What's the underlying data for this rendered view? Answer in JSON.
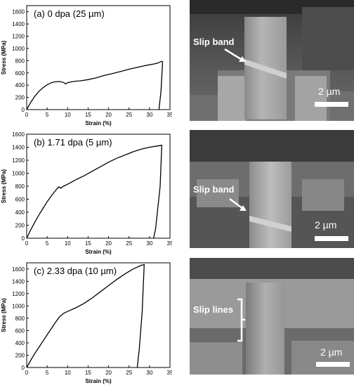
{
  "chart_data": [
    {
      "type": "line",
      "title": "(a) 0 dpa (25 µm)",
      "xlabel": "Strain (%)",
      "ylabel": "Stress (MPa)",
      "xlim": [
        0,
        35
      ],
      "ylim": [
        0,
        1700
      ],
      "x_ticks": [
        "0",
        "5",
        "10",
        "15",
        "20",
        "25",
        "30",
        "35"
      ],
      "y_ticks": [
        "0",
        "200",
        "400",
        "600",
        "800",
        "1000",
        "1200",
        "1400",
        "1600"
      ],
      "series": [
        {
          "x": [
            0,
            1,
            2,
            3,
            4,
            5,
            6,
            7,
            8,
            9,
            9.5,
            10,
            11,
            12,
            13,
            15,
            17,
            19,
            21,
            23,
            25,
            27,
            29,
            31,
            32,
            33,
            33.2,
            32.8,
            32.3
          ],
          "y": [
            0,
            120,
            220,
            300,
            360,
            405,
            440,
            455,
            460,
            445,
            420,
            440,
            455,
            465,
            470,
            490,
            520,
            560,
            590,
            625,
            660,
            690,
            720,
            745,
            760,
            790,
            780,
            300,
            0
          ]
        }
      ]
    },
    {
      "type": "line",
      "title": "(b) 1.71 dpa (5 µm)",
      "xlabel": "Strain (%)",
      "ylabel": "Stress (MPa)",
      "xlim": [
        0,
        35
      ],
      "ylim": [
        0,
        1600
      ],
      "x_ticks": [
        "0",
        "5",
        "10",
        "15",
        "20",
        "25",
        "30",
        "35"
      ],
      "y_ticks": [
        "0",
        "200",
        "400",
        "600",
        "800",
        "1000",
        "1200",
        "1400",
        "1600"
      ],
      "series": [
        {
          "x": [
            0,
            1,
            2,
            3,
            4,
            5,
            6,
            7,
            7.8,
            8.3,
            9,
            10,
            12,
            14,
            16,
            18,
            20,
            22,
            24,
            26,
            28,
            30,
            32,
            33,
            32.6,
            31.5,
            31
          ],
          "y": [
            0,
            130,
            250,
            360,
            460,
            560,
            650,
            730,
            790,
            770,
            800,
            830,
            900,
            960,
            1030,
            1100,
            1170,
            1230,
            1280,
            1330,
            1370,
            1400,
            1420,
            1430,
            800,
            150,
            0
          ]
        }
      ]
    },
    {
      "type": "line",
      "title": "(c) 2.33 dpa (10 µm)",
      "xlabel": "Strain (%)",
      "ylabel": "Stress (MPa)",
      "xlim": [
        0,
        35
      ],
      "ylim": [
        0,
        1700
      ],
      "x_ticks": [
        "0",
        "5",
        "10",
        "15",
        "20",
        "25",
        "30",
        "35"
      ],
      "y_ticks": [
        "0",
        "200",
        "400",
        "600",
        "800",
        "1000",
        "1200",
        "1400",
        "1600"
      ],
      "series": [
        {
          "x": [
            0,
            1,
            2,
            3,
            4,
            5,
            6,
            7,
            8,
            9,
            10,
            12,
            14,
            16,
            18,
            20,
            22,
            24,
            26,
            28,
            28.7,
            28.2,
            27.5,
            27
          ],
          "y": [
            0,
            120,
            230,
            330,
            430,
            530,
            630,
            730,
            820,
            880,
            910,
            970,
            1040,
            1130,
            1230,
            1330,
            1430,
            1520,
            1600,
            1660,
            1670,
            900,
            300,
            0
          ]
        }
      ]
    }
  ],
  "sem_images": [
    {
      "annotation": "Slip band",
      "scale_bar": "2 µm"
    },
    {
      "annotation": "Slip band",
      "scale_bar": "2 µm"
    },
    {
      "annotation": "Slip lines",
      "scale_bar": "2 µm"
    }
  ]
}
